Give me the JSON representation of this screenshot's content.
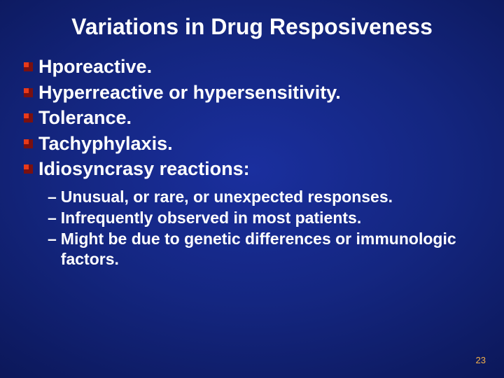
{
  "title": "Variations in Drug Resposiveness",
  "bullets": [
    {
      "text": "Hporeactive."
    },
    {
      "text": "Hyperreactive or hypersensitivity."
    },
    {
      "text": "Tolerance."
    },
    {
      "text": "Tachyphylaxis."
    },
    {
      "text": "Idiosyncrasy reactions:"
    }
  ],
  "sub_bullets": [
    {
      "text": "Unusual, or rare, or unexpected responses."
    },
    {
      "text": "Infrequently observed in most patients."
    },
    {
      "text": "Might be due to genetic differences or immunologic factors."
    }
  ],
  "page_number": "23",
  "colors": {
    "bg_center": "#1a2f9e",
    "bg_edge": "#060d40",
    "text": "#ffffff",
    "bullet_dark": "#7a1010",
    "bullet_light": "#e83a1a",
    "pagenum": "#f3b04a"
  },
  "fontsizes": {
    "title": 32,
    "bullet": 27,
    "sub": 23,
    "pagenum": 13
  }
}
